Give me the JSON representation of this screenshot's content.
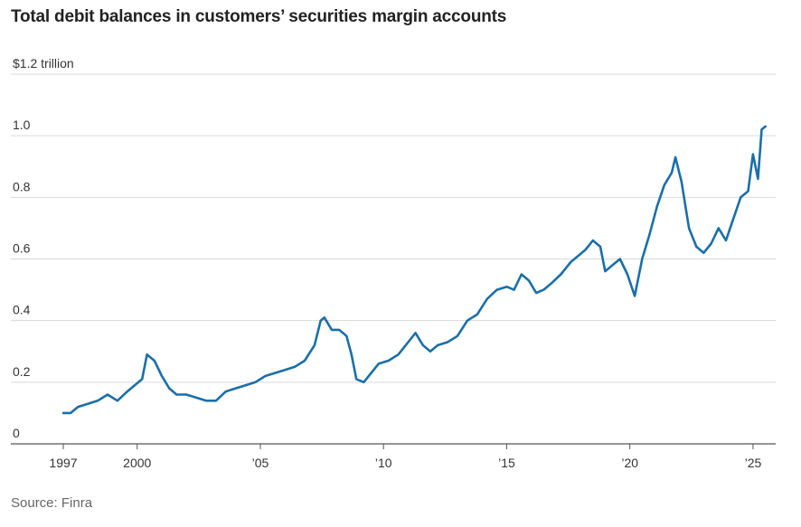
{
  "title": "Total debit balances in customers’ securities margin accounts",
  "source": "Source: Finra",
  "chart_data": {
    "type": "line",
    "title": "Total debit balances in customers’ securities margin accounts",
    "ylabel": "",
    "yunit_label": "$1.2 trillion",
    "ylim": [
      0,
      1.2
    ],
    "ytick_values": [
      0,
      0.2,
      0.4,
      0.6,
      0.8,
      1.0,
      1.2
    ],
    "ytick_labels": [
      "0",
      "0.2",
      "0.4",
      "0.6",
      "0.8",
      "1.0",
      "$1.2 trillion"
    ],
    "xlim": [
      1997,
      2025.7
    ],
    "xtick_values": [
      1997,
      2000,
      2005,
      2010,
      2015,
      2020,
      2025
    ],
    "xtick_labels": [
      "1997",
      "2000",
      "’05",
      "’10",
      "’15",
      "’20",
      "’25"
    ],
    "grid": true,
    "legend": "none",
    "color": "#1a6fa8",
    "series": [
      {
        "x": [
          1997.0,
          1997.3,
          1997.6,
          1998.0,
          1998.4,
          1998.8,
          1999.2,
          1999.6,
          1999.9,
          2000.2,
          2000.4,
          2000.7,
          2001.0,
          2001.3,
          2001.6,
          2002.0,
          2002.4,
          2002.8,
          2003.2,
          2003.6,
          2004.0,
          2004.4,
          2004.8,
          2005.2,
          2005.6,
          2006.0,
          2006.4,
          2006.8,
          2007.2,
          2007.45,
          2007.6,
          2007.9,
          2008.2,
          2008.5,
          2008.7,
          2008.9,
          2009.2,
          2009.5,
          2009.8,
          2010.2,
          2010.6,
          2011.0,
          2011.3,
          2011.6,
          2011.9,
          2012.2,
          2012.6,
          2013.0,
          2013.4,
          2013.8,
          2014.2,
          2014.6,
          2015.0,
          2015.3,
          2015.6,
          2015.9,
          2016.2,
          2016.5,
          2016.8,
          2017.2,
          2017.6,
          2017.9,
          2018.2,
          2018.5,
          2018.8,
          2019.0,
          2019.3,
          2019.6,
          2019.9,
          2020.2,
          2020.5,
          2020.8,
          2021.1,
          2021.4,
          2021.7,
          2021.85,
          2022.1,
          2022.4,
          2022.7,
          2023.0,
          2023.3,
          2023.6,
          2023.9,
          2024.2,
          2024.5,
          2024.8,
          2025.0,
          2025.2,
          2025.35,
          2025.5
        ],
        "y": [
          0.1,
          0.1,
          0.12,
          0.13,
          0.14,
          0.16,
          0.14,
          0.17,
          0.19,
          0.21,
          0.29,
          0.27,
          0.22,
          0.18,
          0.16,
          0.16,
          0.15,
          0.14,
          0.14,
          0.17,
          0.18,
          0.19,
          0.2,
          0.22,
          0.23,
          0.24,
          0.25,
          0.27,
          0.32,
          0.4,
          0.41,
          0.37,
          0.37,
          0.35,
          0.29,
          0.21,
          0.2,
          0.23,
          0.26,
          0.27,
          0.29,
          0.33,
          0.36,
          0.32,
          0.3,
          0.32,
          0.33,
          0.35,
          0.4,
          0.42,
          0.47,
          0.5,
          0.51,
          0.5,
          0.55,
          0.53,
          0.49,
          0.5,
          0.52,
          0.55,
          0.59,
          0.61,
          0.63,
          0.66,
          0.64,
          0.56,
          0.58,
          0.6,
          0.55,
          0.48,
          0.6,
          0.68,
          0.77,
          0.84,
          0.88,
          0.93,
          0.85,
          0.7,
          0.64,
          0.62,
          0.65,
          0.7,
          0.66,
          0.73,
          0.8,
          0.82,
          0.94,
          0.86,
          1.02,
          1.03
        ]
      }
    ]
  }
}
